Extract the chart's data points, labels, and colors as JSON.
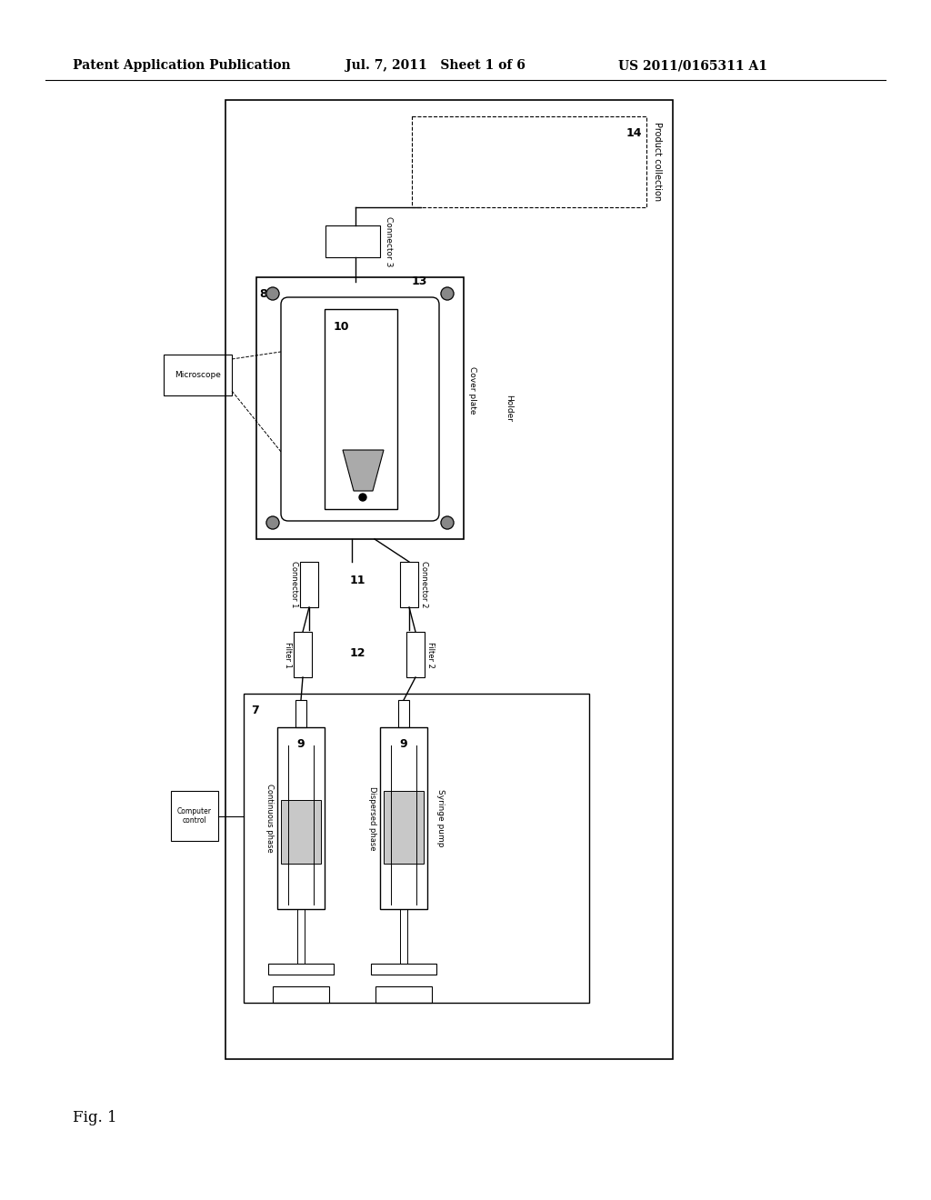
{
  "header_left": "Patent Application Publication",
  "header_mid": "Jul. 7, 2011   Sheet 1 of 6",
  "header_right": "US 2011/0165311 A1",
  "footer_label": "Fig. 1",
  "bg_color": "#ffffff"
}
